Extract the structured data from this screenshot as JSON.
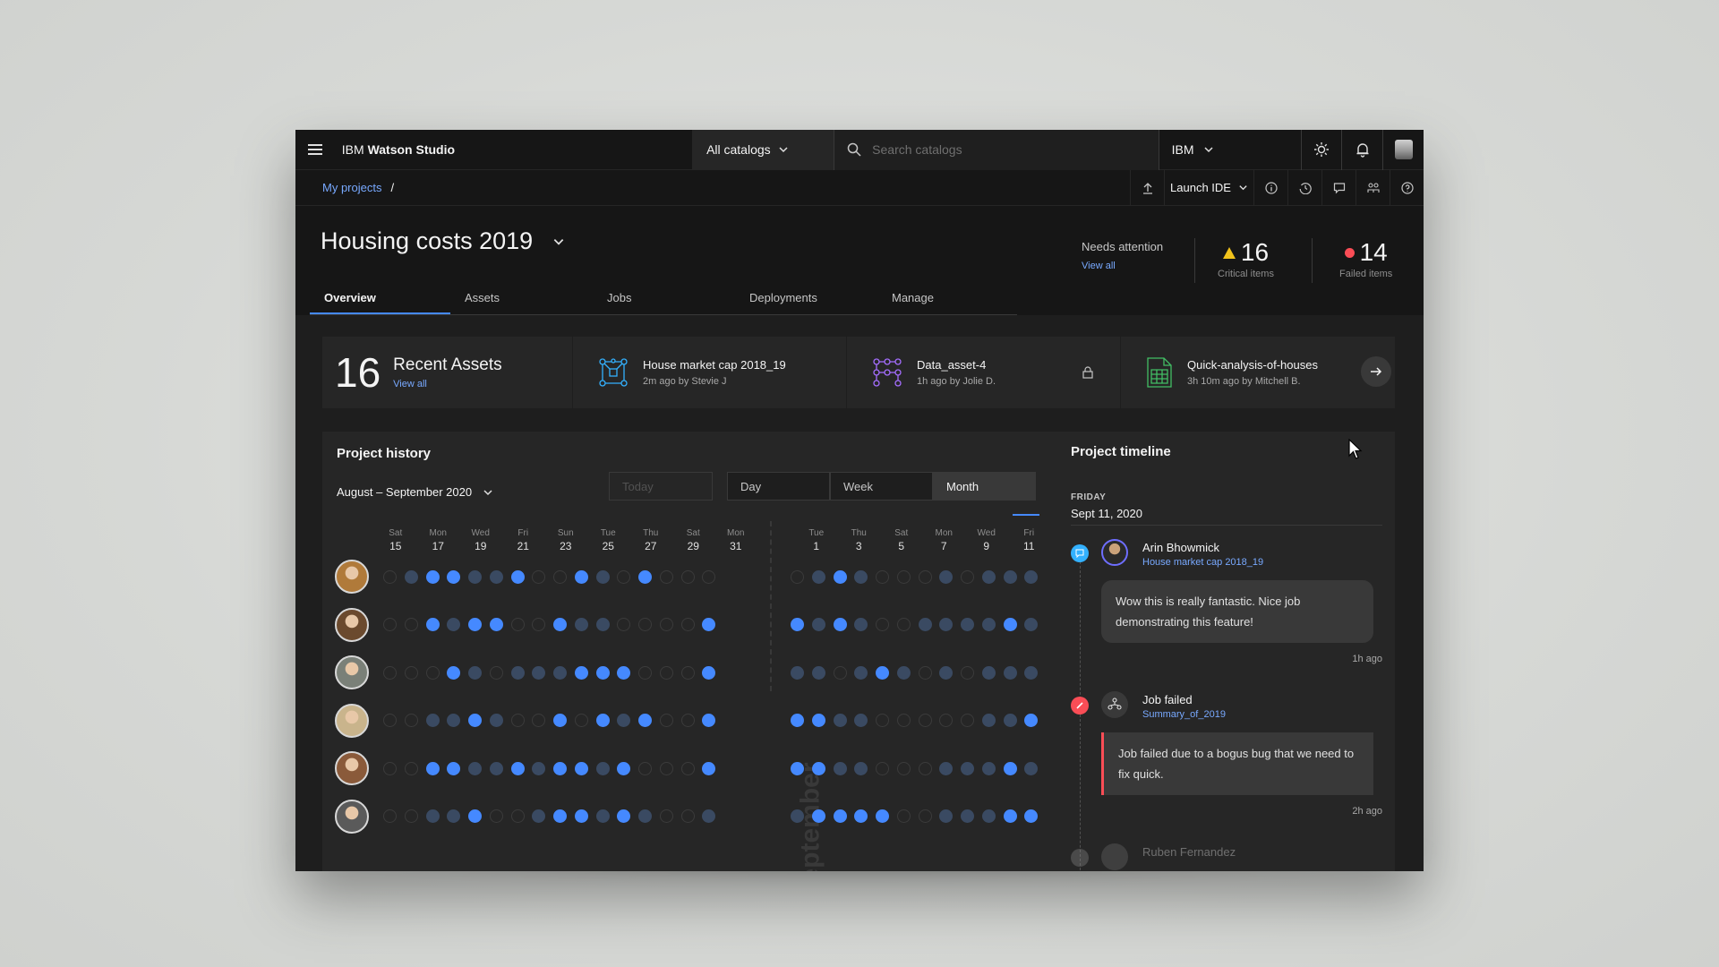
{
  "header": {
    "brand_prefix": "IBM",
    "brand_name": "Watson Studio",
    "catalog_selector": "All catalogs",
    "search_placeholder": "Search catalogs",
    "org": "IBM"
  },
  "subbar": {
    "breadcrumb_link": "My projects",
    "breadcrumb_sep": "/",
    "launch_ide": "Launch IDE"
  },
  "project": {
    "title": "Housing costs 2019",
    "needs_attention": "Needs attention",
    "view_all": "View all",
    "critical_count": "16",
    "critical_label": "Critical items",
    "failed_count": "14",
    "failed_label": "Failed items",
    "tabs": [
      "Overview",
      "Assets",
      "Jobs",
      "Deployments",
      "Manage"
    ],
    "active_tab": "Overview"
  },
  "recent_assets": {
    "count": "16",
    "title": "Recent Assets",
    "view_all": "View all",
    "items": [
      {
        "name": "House market cap 2018_19",
        "meta": "2m ago by Stevie J",
        "icon": "model-flow-icon"
      },
      {
        "name": "Data_asset-4",
        "meta": "1h ago by Jolie D.",
        "icon": "data-flow-icon",
        "locked": true
      },
      {
        "name": "Quick-analysis-of-houses",
        "meta": "3h 10m ago by Mitchell B.",
        "icon": "spreadsheet-icon"
      }
    ]
  },
  "history": {
    "title": "Project history",
    "range": "August – September 2020",
    "today_placeholder": "Today",
    "segments": [
      "Day",
      "Week",
      "Month"
    ],
    "active_segment": "Month",
    "month_label": "September",
    "august_days": [
      {
        "w": "Sat",
        "d": "15"
      },
      {
        "w": "Mon",
        "d": "17"
      },
      {
        "w": "Wed",
        "d": "19"
      },
      {
        "w": "Fri",
        "d": "21"
      },
      {
        "w": "Sun",
        "d": "23"
      },
      {
        "w": "Tue",
        "d": "25"
      },
      {
        "w": "Thu",
        "d": "27"
      },
      {
        "w": "Sat",
        "d": "29"
      },
      {
        "w": "Mon",
        "d": "31"
      }
    ],
    "september_days": [
      {
        "w": "Tue",
        "d": "1"
      },
      {
        "w": "Thu",
        "d": "3"
      },
      {
        "w": "Sat",
        "d": "5"
      },
      {
        "w": "Mon",
        "d": "7"
      },
      {
        "w": "Wed",
        "d": "9"
      },
      {
        "w": "Fri",
        "d": "11"
      }
    ],
    "rows": [
      {
        "aug": "emffmmfeefmefeee",
        "sep": "emfmeeememmm"
      },
      {
        "aug": "eefmffeefmmeeeef",
        "sep": "fmfmeemmmmfm"
      },
      {
        "aug": "eeefmemmmfffeeef",
        "sep": "mmemfmememmm"
      },
      {
        "aug": "eemmfmeefefmfeef",
        "sep": "ffmmeeeeemmff"
      },
      {
        "aug": "eeffmmfmffmfeeef",
        "sep": "ffmmeeemmmfm"
      },
      {
        "aug": "eemmfeemffmfmeem",
        "sep": "mffffeemmmff"
      }
    ],
    "avatar_colors": [
      "#b07a3a",
      "#6b4a2e",
      "#7a8078",
      "#c9b48c",
      "#8a5a3a",
      "#5a5a5a"
    ]
  },
  "timeline": {
    "title": "Project timeline",
    "weekday": "FRIDAY",
    "date": "Sept 11, 2020",
    "events": [
      {
        "who": "Arin Bhowmick",
        "link": "House market cap 2018_19",
        "message": "Wow this is really fantastic. Nice job demonstrating this feature!",
        "ago": "1h ago"
      },
      {
        "who": "Job failed",
        "link": "Summary_of_2019",
        "message": "Job failed due to a bogus bug that we need to fix quick.",
        "ago": "2h ago"
      },
      {
        "who": "Ruben Fernandez"
      }
    ]
  },
  "colors": {
    "accent": "#4589ff",
    "link": "#78a9ff",
    "warning": "#f1c21b",
    "error": "#fa4d56"
  }
}
